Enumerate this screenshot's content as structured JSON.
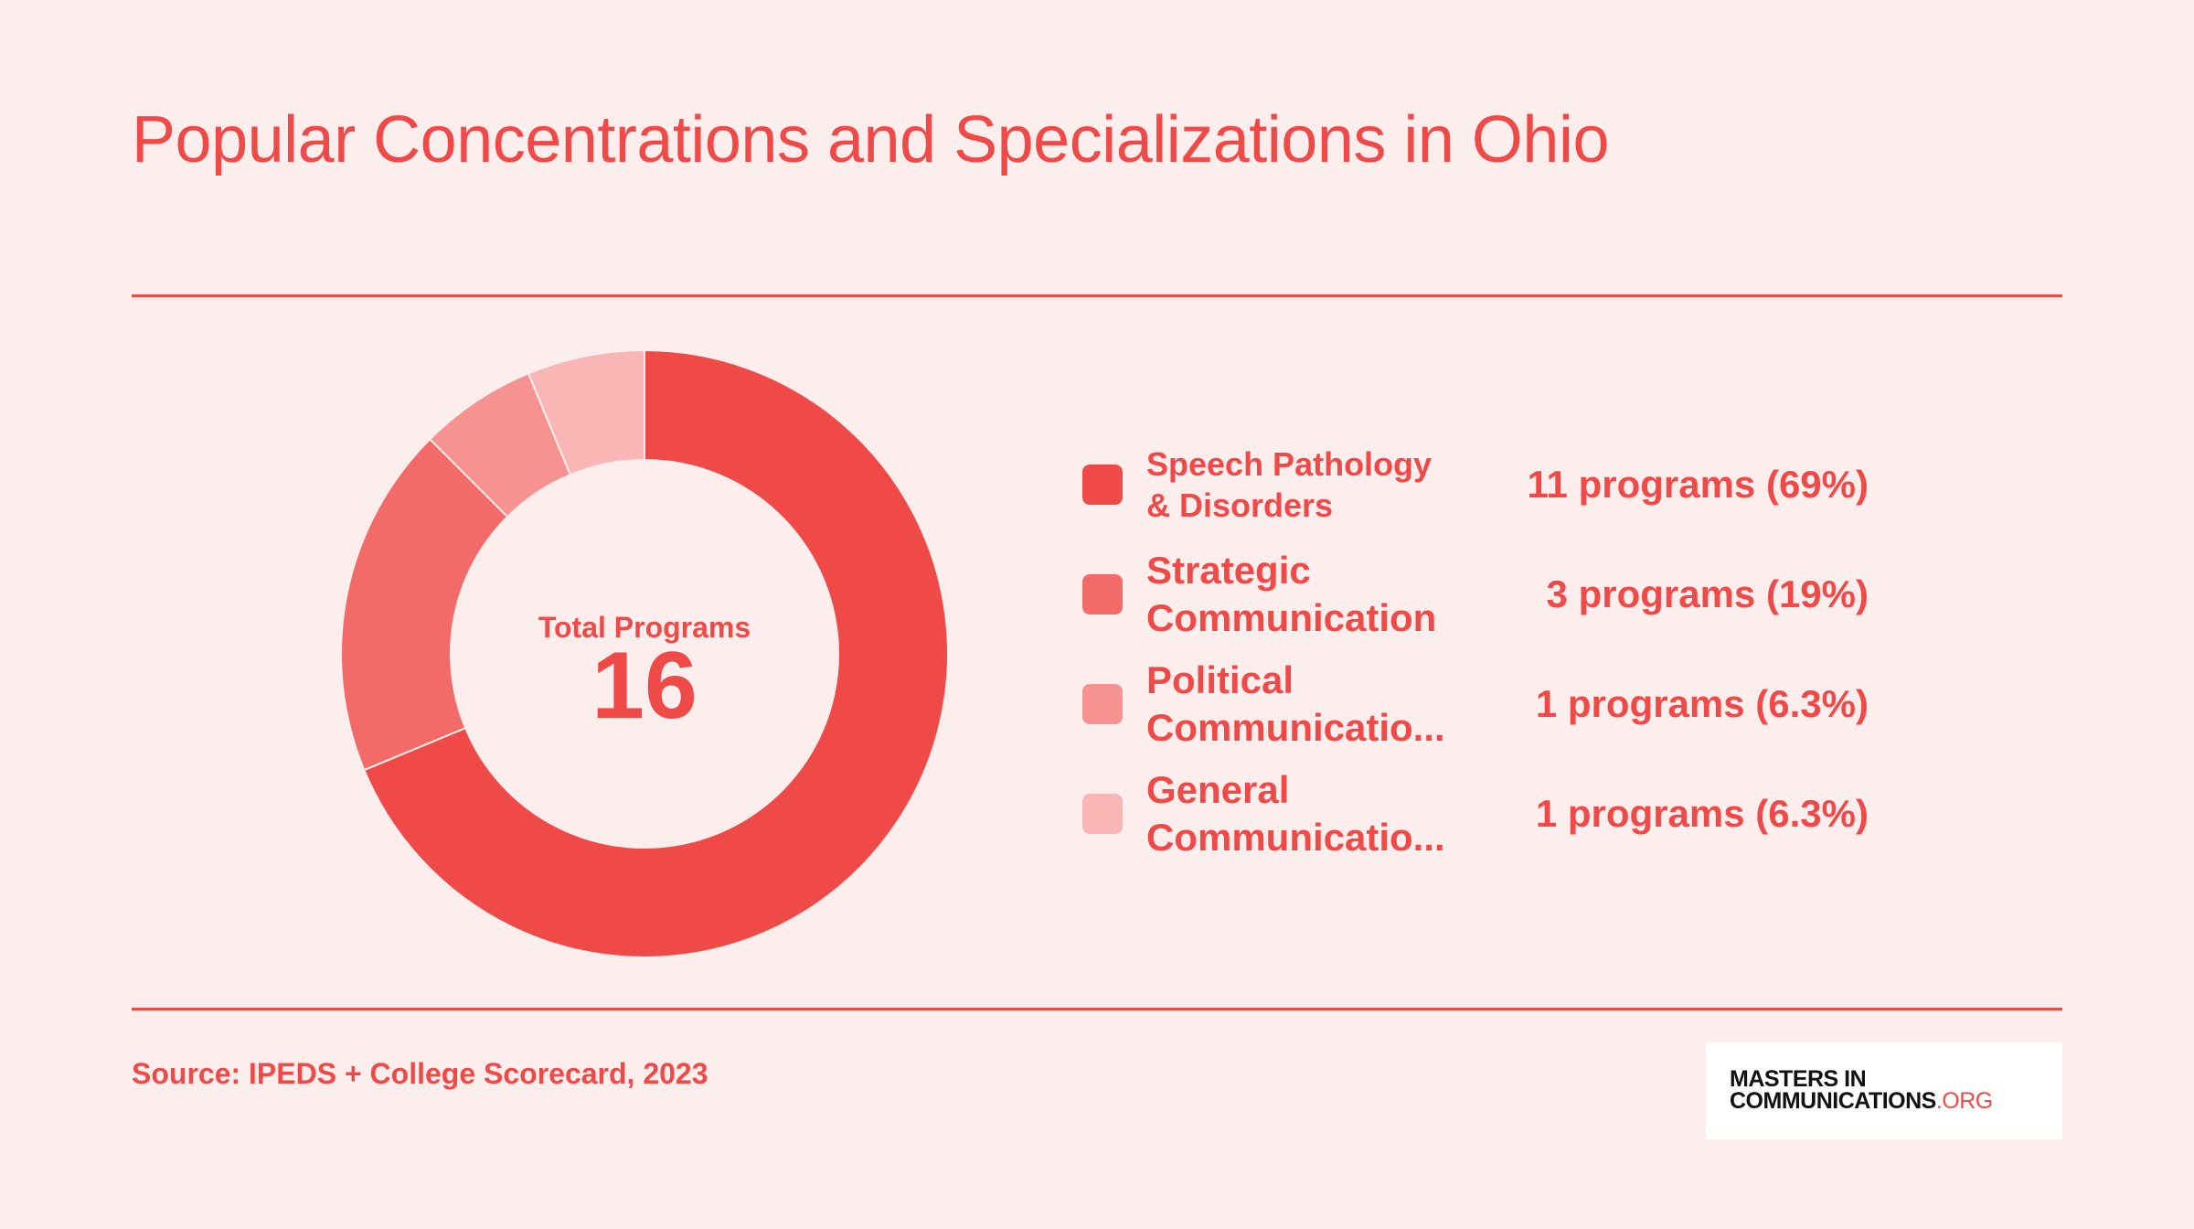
{
  "title": "Popular Concentrations and Specializations in Ohio",
  "center": {
    "label": "Total Programs",
    "value": "16"
  },
  "source": "Source: IPEDS + College Scorecard, 2023",
  "logo": {
    "line1": "MASTERS IN",
    "line2_main": "COMMUNICATIONS",
    "line2_accent": ".ORG"
  },
  "legend": [
    {
      "name": "Speech Pathology & Disorders",
      "value_text": "11 programs (69%)",
      "color": "#ef4a48"
    },
    {
      "name": "Strategic Communication",
      "value_text": "3 programs (19%)",
      "color": "#f26b68"
    },
    {
      "name": "Political Communicatio...",
      "value_text": "1 programs (6.3%)",
      "color": "#f69391"
    },
    {
      "name": "General Communicatio...",
      "value_text": "1 programs (6.3%)",
      "color": "#f9b6b5"
    }
  ],
  "chart_data": {
    "type": "pie",
    "variant": "donut",
    "categories": [
      "Speech Pathology & Disorders",
      "Strategic Communication",
      "Political Communicatio...",
      "General Communicatio..."
    ],
    "values": [
      11,
      3,
      1,
      1
    ],
    "percents": [
      69,
      19,
      6.3,
      6.3
    ],
    "total": 16,
    "colors": [
      "#ef4a48",
      "#f26b68",
      "#f69391",
      "#f9b6b5"
    ],
    "legend_position": "right"
  }
}
